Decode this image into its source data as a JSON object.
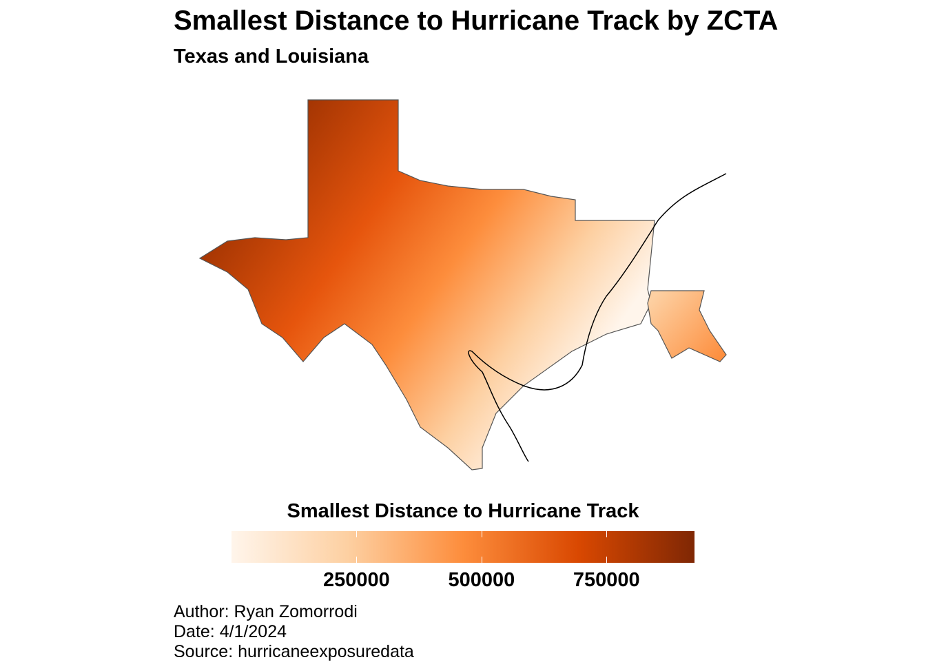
{
  "title": "Smallest Distance to Hurricane Track by ZCTA",
  "subtitle": "Texas and Louisiana",
  "legend": {
    "title": "Smallest Distance to Hurricane Track",
    "min": 0,
    "max": 926000,
    "ticks": [
      250000,
      500000,
      750000
    ],
    "tick_labels": [
      "250000",
      "500000",
      "750000"
    ],
    "colors": [
      "#fff5eb",
      "#fdd0a2",
      "#fd8d3c",
      "#d94801",
      "#7f2704"
    ]
  },
  "map": {
    "regions": [
      "Texas",
      "Louisiana"
    ],
    "unit": "ZCTA",
    "border_color": "#555555",
    "track_color": "#000000"
  },
  "caption": {
    "author": "Author: Ryan Zomorrodi",
    "date": "Date: 4/1/2024",
    "source": "Source: hurricaneexposuredata"
  }
}
